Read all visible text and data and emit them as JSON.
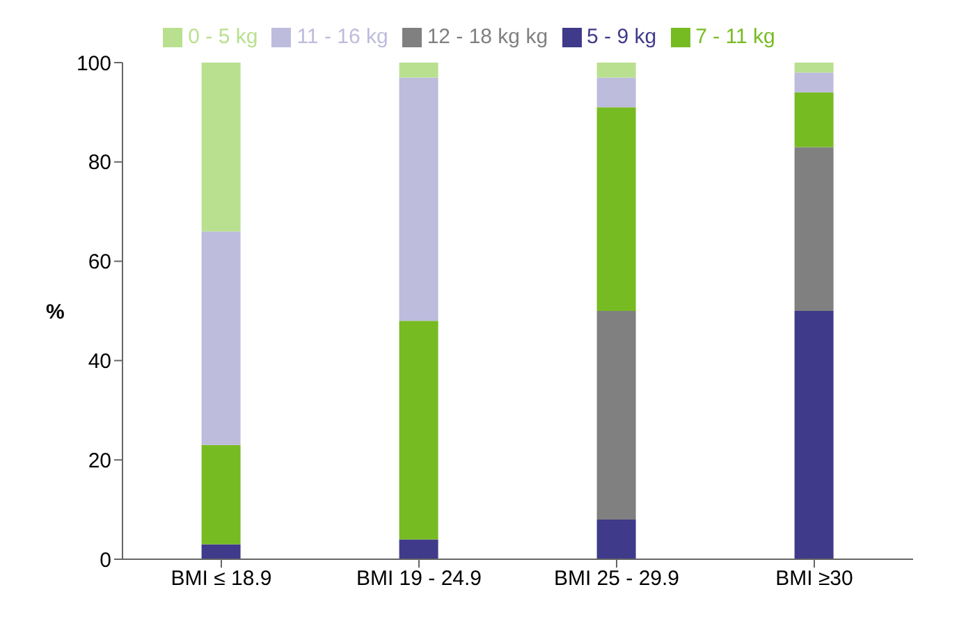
{
  "chart_data": {
    "type": "bar",
    "stacked": true,
    "ylabel": "%",
    "categories": [
      "BMI ≤ 18.9",
      "BMI 19 - 24.9",
      "BMI 25 - 29.9",
      "BMI ≥30"
    ],
    "series": [
      {
        "name": "5 - 9 kg",
        "color": "#3f3a8a",
        "values": [
          3,
          4,
          8,
          50
        ]
      },
      {
        "name": "12 - 18 kg kg",
        "color": "#808080",
        "values": [
          0,
          0,
          42,
          33
        ]
      },
      {
        "name": "7 - 11 kg",
        "color": "#77bb22",
        "values": [
          20,
          44,
          41,
          11
        ]
      },
      {
        "name": "11 - 16 kg",
        "color": "#bdbcdc",
        "values": [
          43,
          49,
          6,
          4
        ]
      },
      {
        "name": "0 - 5 kg",
        "color": "#b9e08f",
        "values": [
          34,
          3,
          3,
          2
        ]
      }
    ],
    "ylim": [
      0,
      100
    ],
    "yticks": [
      0,
      20,
      40,
      60,
      80,
      100
    ],
    "grid": false,
    "legend": "top"
  }
}
